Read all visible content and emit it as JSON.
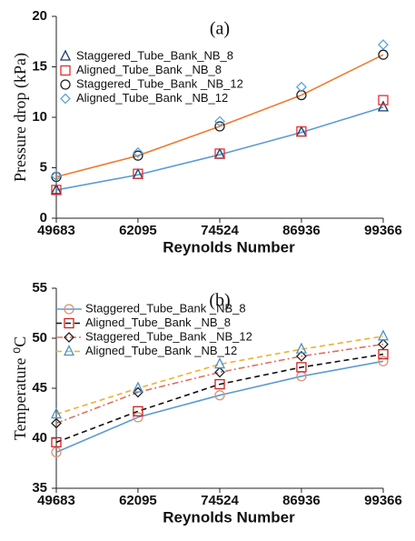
{
  "chart_data": [
    {
      "type": "line",
      "title": "(a)",
      "x_label": "Reynolds Number",
      "y_label": "Pressure drop (kPa)",
      "x": [
        49683,
        62095,
        74524,
        86936,
        99366
      ],
      "xlim": [
        49683,
        99366
      ],
      "xticks": [
        49683,
        62095,
        74524,
        86936,
        99366
      ],
      "ylim": [
        0,
        20
      ],
      "yticks": [
        0,
        5,
        10,
        15,
        20
      ],
      "legend_lines": false,
      "series": [
        {
          "name": "Staggered_Tube_Bank_NB_8",
          "marker": "triangle",
          "color": "#1f3864",
          "line_color": "#5b9bd5",
          "dash": "solid",
          "values": [
            2.8,
            4.3,
            6.3,
            8.5,
            11.0
          ]
        },
        {
          "name": "Aligned_Tube_Bank _NB_8",
          "marker": "square",
          "color": "#e03030",
          "values": [
            2.8,
            4.4,
            6.4,
            8.6,
            11.7
          ]
        },
        {
          "name": "Staggered_Tube_Bank _NB_12",
          "marker": "circle",
          "color": "#222222",
          "line_color": "#ed7d31",
          "dash": "solid",
          "values": [
            4.1,
            6.2,
            9.1,
            12.2,
            16.2
          ]
        },
        {
          "name": "Aligned_Tube_Bank _NB_12",
          "marker": "diamond",
          "color": "#5ba3d9",
          "values": [
            4.2,
            6.5,
            9.6,
            13.0,
            17.2
          ]
        }
      ]
    },
    {
      "type": "line",
      "title": "(b)",
      "x_label": "Reynolds Number",
      "y_label": "Temperature ⁰C",
      "x": [
        49683,
        62095,
        74524,
        86936,
        99366
      ],
      "xlim": [
        49683,
        99366
      ],
      "xticks": [
        49683,
        62095,
        74524,
        86936,
        99366
      ],
      "ylim": [
        35,
        55
      ],
      "yticks": [
        35,
        40,
        45,
        50,
        55
      ],
      "legend_lines": true,
      "series": [
        {
          "name": "Staggered_Tube_Bank _NB_8",
          "marker": "circle",
          "color": "#e09070",
          "line_color": "#5b9bd5",
          "dash": "solid",
          "values": [
            38.6,
            42.1,
            44.3,
            46.2,
            47.7
          ]
        },
        {
          "name": "Aligned_Tube_Bank _NB_8",
          "marker": "square",
          "color": "#d02020",
          "line_color": "#111111",
          "dash": "dashed",
          "values": [
            39.6,
            42.7,
            45.4,
            47.1,
            48.4
          ]
        },
        {
          "name": "Staggered_Tube_Bank _NB_12",
          "marker": "diamond",
          "color": "#222222",
          "line_color": "#e07060",
          "dash": "dashdot",
          "values": [
            41.5,
            44.6,
            46.6,
            48.2,
            49.4
          ]
        },
        {
          "name": "Aligned_Tube_Bank _NB_12",
          "marker": "triangle",
          "color": "#4a90c8",
          "line_color": "#f0b030",
          "dash": "dashed",
          "values": [
            42.4,
            45.0,
            47.4,
            48.9,
            50.2
          ]
        }
      ]
    }
  ]
}
